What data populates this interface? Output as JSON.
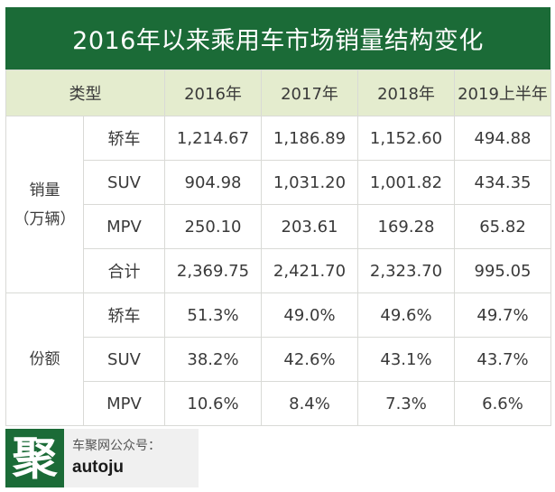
{
  "title": "2016年以来乘用车市场销量结构变化",
  "table": {
    "header": [
      "类型",
      "2016年",
      "2017年",
      "2018年",
      "2019上半年"
    ],
    "groups": [
      {
        "label_line1": "销量",
        "label_line2": "（万辆）",
        "rows": [
          {
            "type": "轿车",
            "values": [
              "1,214.67",
              "1,186.89",
              "1,152.60",
              "494.88"
            ]
          },
          {
            "type": "SUV",
            "values": [
              "904.98",
              "1,031.20",
              "1,001.82",
              "434.35"
            ]
          },
          {
            "type": "MPV",
            "values": [
              "250.10",
              "203.61",
              "169.28",
              "65.82"
            ]
          },
          {
            "type": "合计",
            "values": [
              "2,369.75",
              "2,421.70",
              "2,323.70",
              "995.05"
            ]
          }
        ]
      },
      {
        "label_line1": "份额",
        "label_line2": "",
        "rows": [
          {
            "type": "轿车",
            "values": [
              "51.3%",
              "49.0%",
              "49.6%",
              "49.7%"
            ]
          },
          {
            "type": "SUV",
            "values": [
              "38.2%",
              "42.6%",
              "43.1%",
              "43.7%"
            ]
          },
          {
            "type": "MPV",
            "values": [
              "10.6%",
              "8.4%",
              "7.3%",
              "6.6%"
            ]
          }
        ]
      }
    ]
  },
  "footer": {
    "logo_char": "聚",
    "label": "车聚网公众号：",
    "handle": "autoju"
  },
  "colors": {
    "title_bg": "#1b6b37",
    "header_bg": "#e4ecce",
    "border": "#d9dad6",
    "text": "#3a3a3a"
  }
}
